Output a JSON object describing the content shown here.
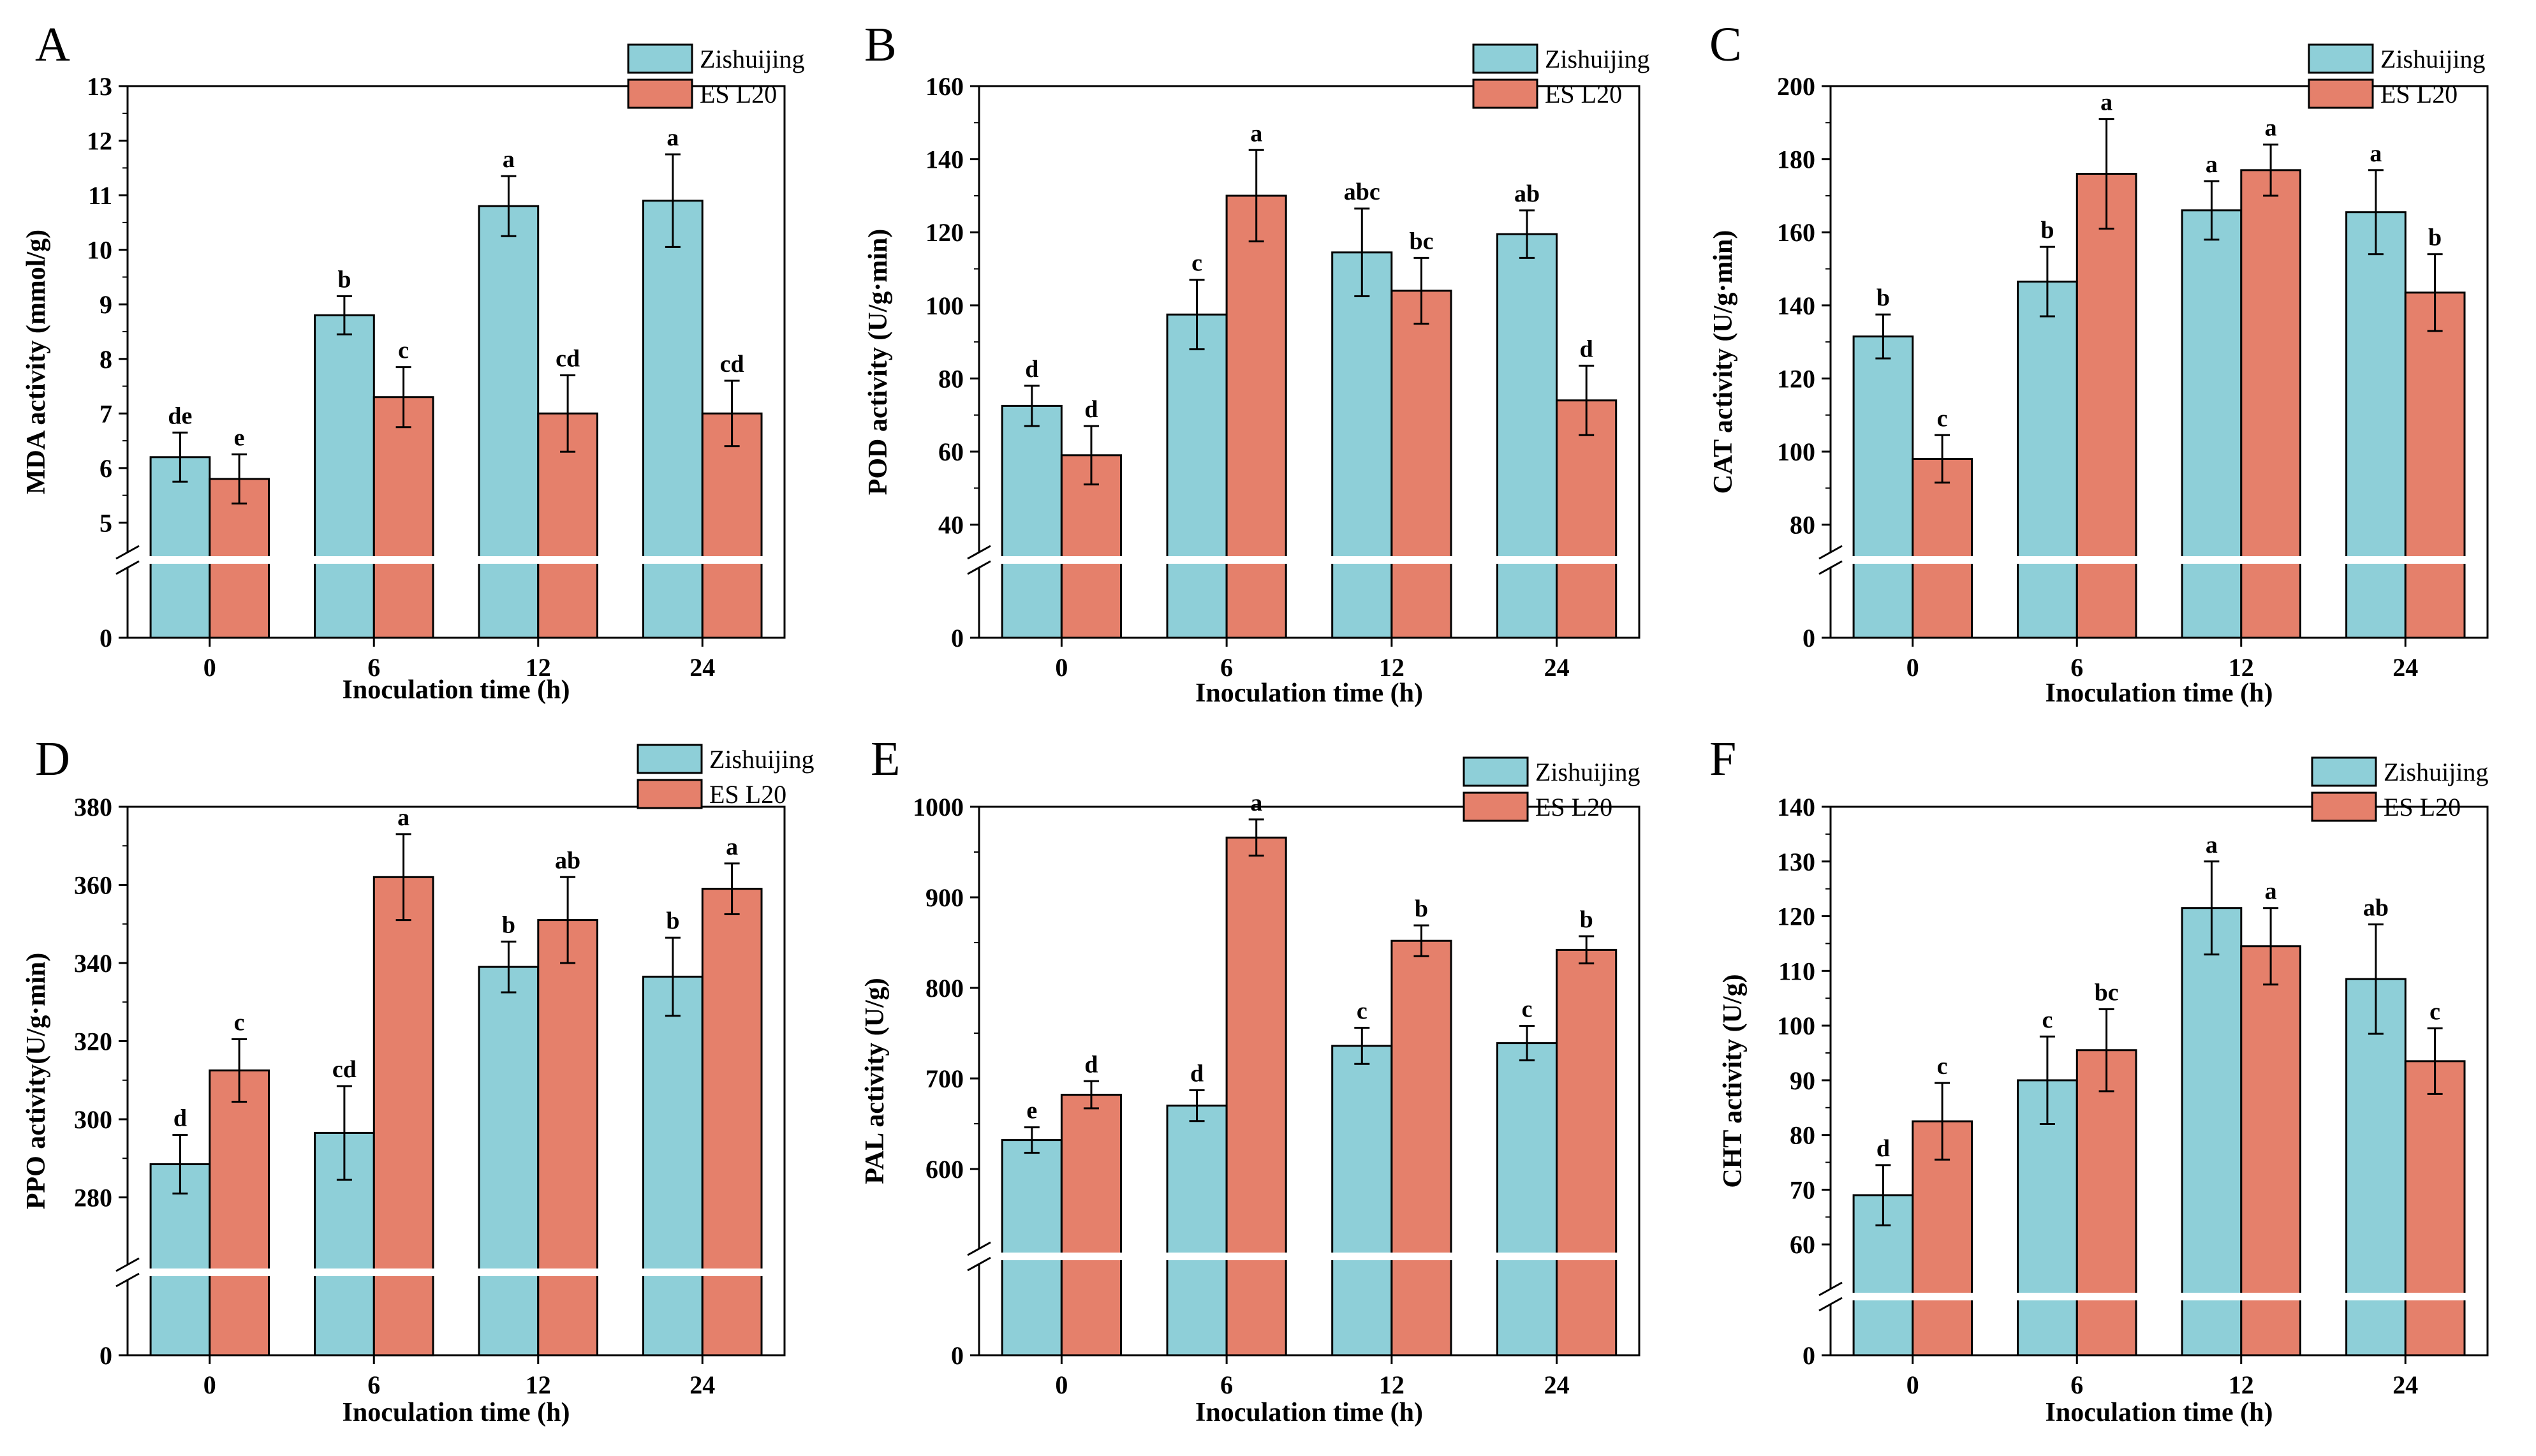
{
  "colors": {
    "Zishuijing": "#8ecfd8",
    "ES L20": "#e5806b",
    "axis": "#000000",
    "break": "#ffffff"
  },
  "chart_data": [
    {
      "panel": "A",
      "type": "bar",
      "title": "",
      "categories": [
        "0",
        "6",
        "12",
        "24"
      ],
      "xlabel": "Inoculation time (h)",
      "ylabel": "MDA activity (mmol/g)",
      "ylim": [
        4,
        13
      ],
      "break_value": 4,
      "yticks": [
        5,
        6,
        7,
        8,
        9,
        10,
        11,
        12,
        13
      ],
      "zero_label": "0",
      "legend": "top-right",
      "series": [
        {
          "name": "Zishuijing",
          "values": [
            6.2,
            8.8,
            10.8,
            10.9
          ],
          "errors": [
            0.45,
            0.35,
            0.55,
            0.85
          ],
          "labels": [
            "de",
            "b",
            "a",
            "a"
          ]
        },
        {
          "name": "ES L20",
          "values": [
            5.8,
            7.3,
            7.0,
            7.0
          ],
          "errors": [
            0.45,
            0.55,
            0.7,
            0.6
          ],
          "labels": [
            "e",
            "c",
            "cd",
            "cd"
          ]
        }
      ]
    },
    {
      "panel": "B",
      "type": "bar",
      "title": "",
      "categories": [
        "0",
        "6",
        "12",
        "24"
      ],
      "xlabel": "Inoculation time (h)",
      "ylabel": "POD activity (U/g·min)",
      "ylim": [
        30,
        160
      ],
      "break_value": 30,
      "yticks": [
        40,
        60,
        80,
        100,
        120,
        140,
        160
      ],
      "zero_label": "0",
      "legend": "top-right",
      "series": [
        {
          "name": "Zishuijing",
          "values": [
            72.5,
            97.5,
            114.5,
            119.5
          ],
          "errors": [
            5.5,
            9.5,
            12,
            6.5
          ],
          "labels": [
            "d",
            "c",
            "abc",
            "ab"
          ]
        },
        {
          "name": "ES L20",
          "values": [
            59,
            130,
            104,
            74
          ],
          "errors": [
            8,
            12.5,
            9,
            9.5
          ],
          "labels": [
            "d",
            "a",
            "bc",
            "d"
          ]
        }
      ]
    },
    {
      "panel": "C",
      "type": "bar",
      "title": "",
      "categories": [
        "0",
        "6",
        "12",
        "24"
      ],
      "xlabel": "Inoculation time (h)",
      "ylabel": "CAT activity (U/g·min)",
      "ylim": [
        70,
        200
      ],
      "break_value": 70,
      "yticks": [
        80,
        100,
        120,
        140,
        160,
        180,
        200
      ],
      "zero_label": "0",
      "legend": "top-right",
      "series": [
        {
          "name": "Zishuijing",
          "values": [
            131.5,
            146.5,
            166,
            165.5
          ],
          "errors": [
            6,
            9.5,
            8,
            11.5
          ],
          "labels": [
            "b",
            "b",
            "a",
            "a"
          ]
        },
        {
          "name": "ES L20",
          "values": [
            98,
            176,
            177,
            143.5
          ],
          "errors": [
            6.5,
            15,
            7,
            10.5
          ],
          "labels": [
            "c",
            "a",
            "a",
            "b"
          ]
        }
      ]
    },
    {
      "panel": "D",
      "type": "bar",
      "title": "",
      "categories": [
        "0",
        "6",
        "12",
        "24"
      ],
      "xlabel": "Inoculation time (h)",
      "ylabel": "PPO activity(U/g·min)",
      "ylim": [
        260,
        380
      ],
      "break_value": 260,
      "yticks": [
        280,
        300,
        320,
        340,
        360,
        380
      ],
      "zero_label": "0",
      "legend": "top-right",
      "series": [
        {
          "name": "Zishuijing",
          "values": [
            288.5,
            296.5,
            339,
            336.5
          ],
          "errors": [
            7.5,
            12,
            6.5,
            10
          ],
          "labels": [
            "d",
            "cd",
            "b",
            "b"
          ]
        },
        {
          "name": "ES L20",
          "values": [
            312.5,
            362,
            351,
            359
          ],
          "errors": [
            8,
            11,
            11,
            6.5
          ],
          "labels": [
            "c",
            "a",
            "ab",
            "a"
          ]
        }
      ]
    },
    {
      "panel": "E",
      "type": "bar",
      "title": "",
      "categories": [
        "0",
        "6",
        "12",
        "24"
      ],
      "xlabel": "Inoculation time (h)",
      "ylabel": "PAL activity (U/g)",
      "ylim": [
        500,
        1000
      ],
      "break_value": 500,
      "yticks": [
        600,
        700,
        800,
        900,
        1000
      ],
      "zero_label": "0",
      "legend": "top-right",
      "series": [
        {
          "name": "Zishuijing",
          "values": [
            632,
            670,
            736,
            739
          ],
          "errors": [
            14,
            17,
            20,
            19
          ],
          "labels": [
            "e",
            "d",
            "c",
            "c"
          ]
        },
        {
          "name": "ES L20",
          "values": [
            682,
            966,
            852,
            842
          ],
          "errors": [
            15,
            20,
            17,
            15
          ],
          "labels": [
            "d",
            "a",
            "b",
            "b"
          ]
        }
      ]
    },
    {
      "panel": "F",
      "type": "bar",
      "title": "",
      "categories": [
        "0",
        "6",
        "12",
        "24"
      ],
      "xlabel": "Inoculation time (h)",
      "ylabel": "CHT activity (U/g)",
      "ylim": [
        50,
        140
      ],
      "break_value": 50,
      "yticks": [
        60,
        70,
        80,
        90,
        100,
        110,
        120,
        130,
        140
      ],
      "zero_label": "0",
      "legend": "top-right",
      "series": [
        {
          "name": "Zishuijing",
          "values": [
            69,
            90,
            121.5,
            108.5
          ],
          "errors": [
            5.5,
            8,
            8.5,
            10
          ],
          "labels": [
            "d",
            "c",
            "a",
            "ab"
          ]
        },
        {
          "name": "ES L20",
          "values": [
            82.5,
            95.5,
            114.5,
            93.5
          ],
          "errors": [
            7,
            7.5,
            7,
            6
          ],
          "labels": [
            "c",
            "bc",
            "a",
            "c"
          ]
        }
      ]
    }
  ]
}
